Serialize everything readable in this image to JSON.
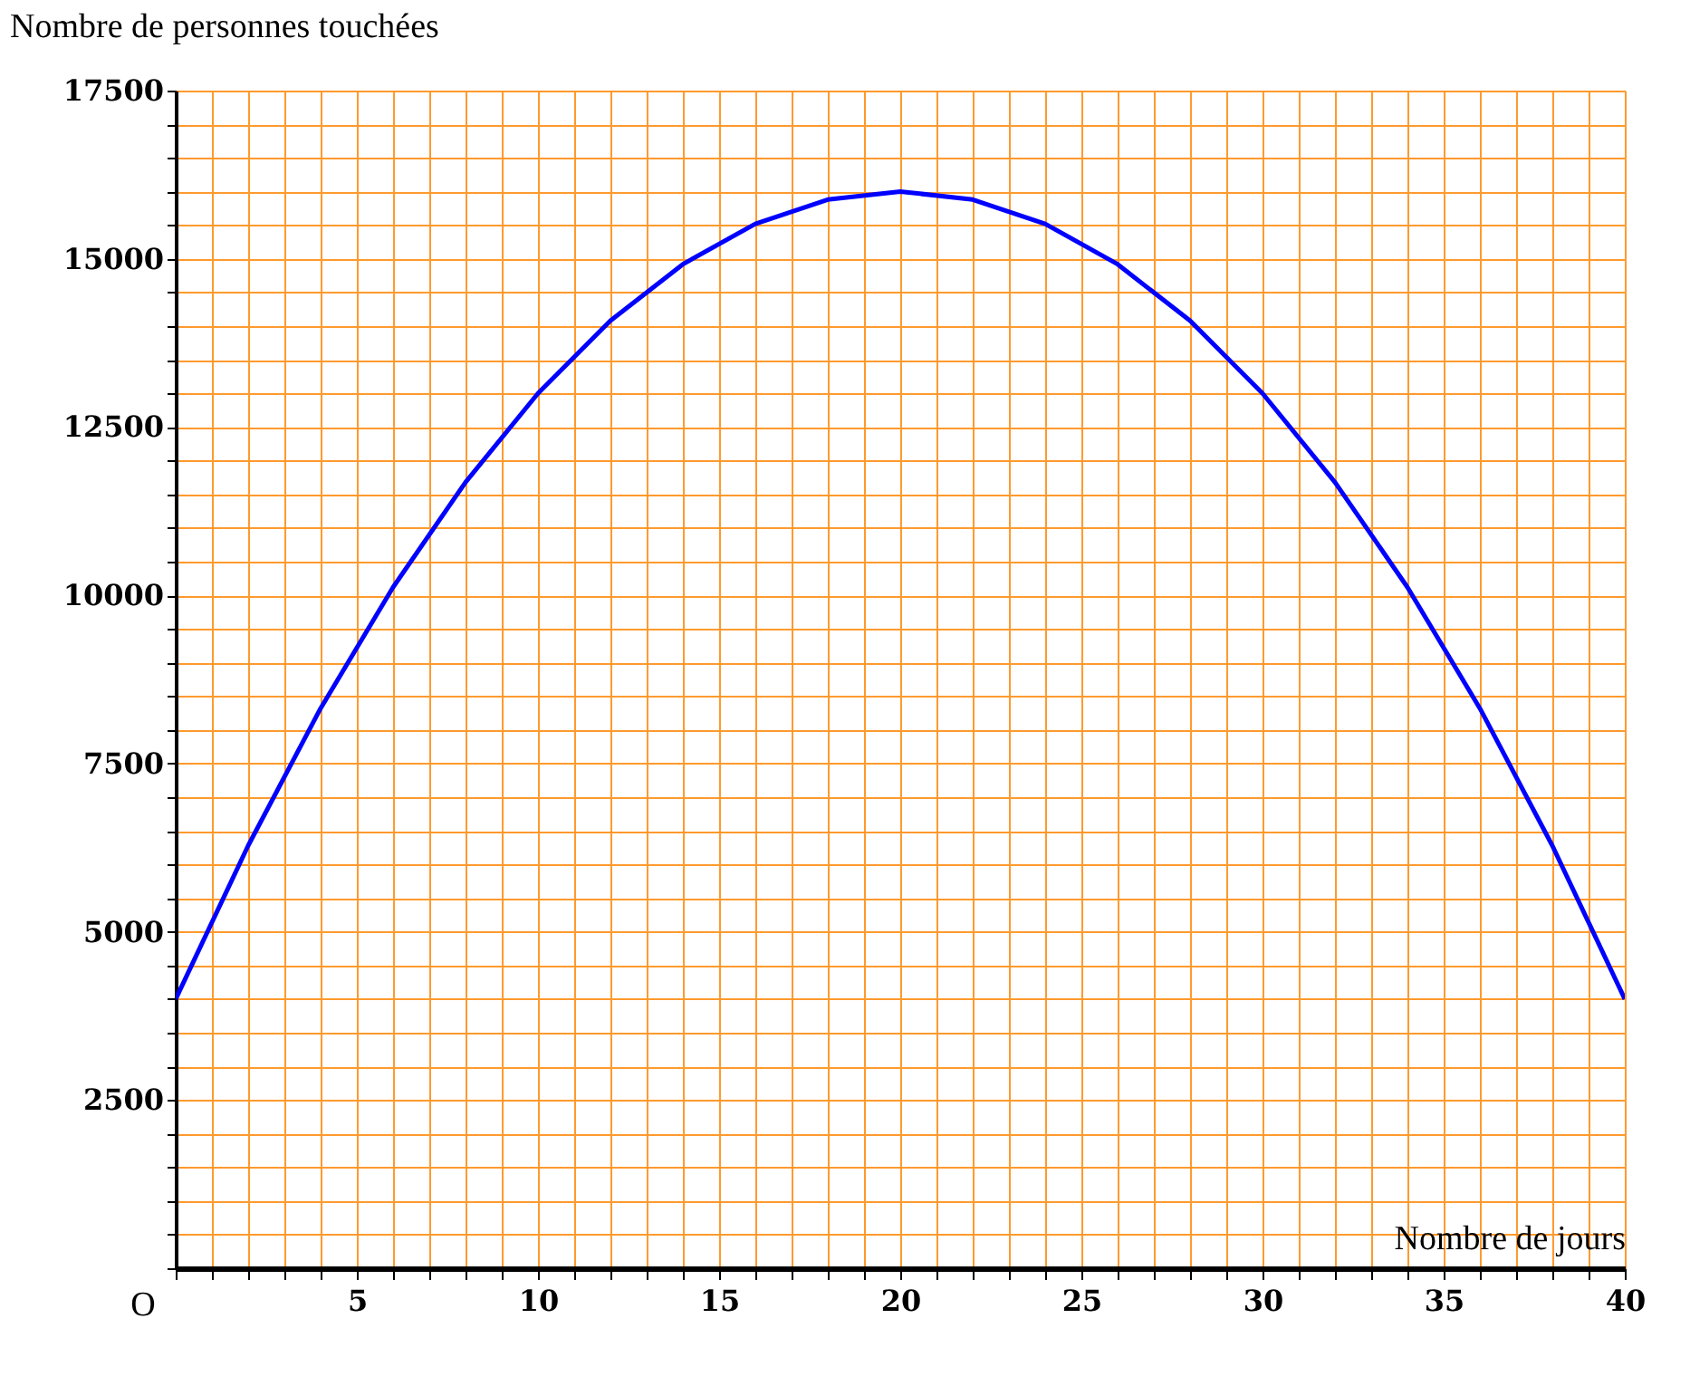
{
  "chart_data": {
    "type": "line",
    "xlabel": "Nombre de jours",
    "ylabel": "Nombre de personnes touchées",
    "x": [
      0,
      2,
      4,
      6,
      8,
      10,
      12,
      14,
      16,
      18,
      20,
      22,
      24,
      26,
      28,
      30,
      32,
      34,
      36,
      38,
      40
    ],
    "series": [
      {
        "color": "#0000ff",
        "values": [
          4000,
          6280,
          8320,
          10120,
          11680,
          13000,
          14080,
          14920,
          15520,
          15880,
          16000,
          15880,
          15520,
          14920,
          14080,
          13000,
          11680,
          10120,
          8320,
          6280,
          4000
        ]
      }
    ],
    "xlim": [
      0,
      40
    ],
    "ylim": [
      0,
      17500
    ],
    "xticks": [
      {
        "value": 0,
        "label": null
      },
      {
        "value": 1,
        "label": null
      },
      {
        "value": 2,
        "label": null
      },
      {
        "value": 3,
        "label": null
      },
      {
        "value": 4,
        "label": null
      },
      5,
      {
        "value": 6,
        "label": null
      },
      {
        "value": 7,
        "label": null
      },
      {
        "value": 8,
        "label": null
      },
      {
        "value": 9,
        "label": null
      },
      10,
      {
        "value": 11,
        "label": null
      },
      {
        "value": 12,
        "label": null
      },
      {
        "value": 13,
        "label": null
      },
      {
        "value": 14,
        "label": null
      },
      15,
      {
        "value": 16,
        "label": null
      },
      {
        "value": 17,
        "label": null
      },
      {
        "value": 18,
        "label": null
      },
      {
        "value": 19,
        "label": null
      },
      20,
      {
        "value": 21,
        "label": null
      },
      {
        "value": 22,
        "label": null
      },
      {
        "value": 23,
        "label": null
      },
      {
        "value": 24,
        "label": null
      },
      25,
      {
        "value": 26,
        "label": null
      },
      {
        "value": 27,
        "label": null
      },
      {
        "value": 28,
        "label": null
      },
      {
        "value": 29,
        "label": null
      },
      30,
      {
        "value": 31,
        "label": null
      },
      {
        "value": 32,
        "label": null
      },
      {
        "value": 33,
        "label": null
      },
      {
        "value": 34,
        "label": null
      },
      35,
      {
        "value": 36,
        "label": null
      },
      {
        "value": 37,
        "label": null
      },
      {
        "value": 38,
        "label": null
      },
      {
        "value": 39,
        "label": null
      },
      40
    ],
    "yticks": [
      {
        "value": 0,
        "label": null
      },
      {
        "value": 500,
        "label": null
      },
      {
        "value": 1000,
        "label": null
      },
      {
        "value": 1500,
        "label": null
      },
      {
        "value": 2000,
        "label": null
      },
      2500,
      {
        "value": 3000,
        "label": null
      },
      {
        "value": 3500,
        "label": null
      },
      {
        "value": 4000,
        "label": null
      },
      {
        "value": 4500,
        "label": null
      },
      5000,
      {
        "value": 5500,
        "label": null
      },
      {
        "value": 6000,
        "label": null
      },
      {
        "value": 6500,
        "label": null
      },
      {
        "value": 7000,
        "label": null
      },
      7500,
      {
        "value": 8000,
        "label": null
      },
      {
        "value": 8500,
        "label": null
      },
      {
        "value": 9000,
        "label": null
      },
      {
        "value": 9500,
        "label": null
      },
      10000,
      {
        "value": 10500,
        "label": null
      },
      {
        "value": 11000,
        "label": null
      },
      {
        "value": 11500,
        "label": null
      },
      {
        "value": 12000,
        "label": null
      },
      12500,
      {
        "value": 13000,
        "label": null
      },
      {
        "value": 13500,
        "label": null
      },
      {
        "value": 14000,
        "label": null
      },
      {
        "value": 14500,
        "label": null
      },
      15000,
      {
        "value": 15500,
        "label": null
      },
      {
        "value": 16000,
        "label": null
      },
      {
        "value": 16500,
        "label": null
      },
      {
        "value": 17000,
        "label": null
      },
      17500
    ],
    "grid": true,
    "marker": "none",
    "line_style": "solid",
    "annotations": [
      "O"
    ]
  }
}
